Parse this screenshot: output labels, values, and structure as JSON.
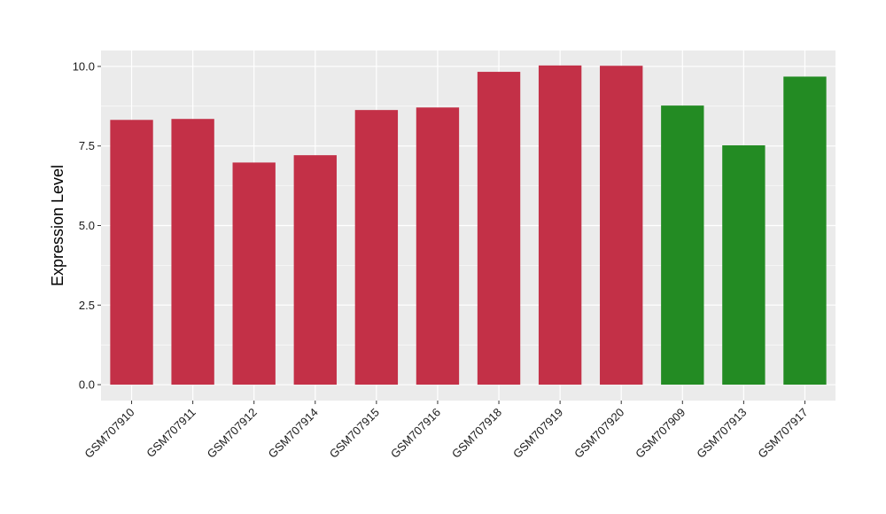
{
  "chart_data": {
    "type": "bar",
    "title": "",
    "xlabel": "",
    "ylabel": "Expression Level",
    "ylim": [
      -0.5,
      10.5
    ],
    "yticks": [
      0.0,
      2.5,
      5.0,
      7.5,
      10.0
    ],
    "ytick_labels": [
      "0.0",
      "2.5",
      "5.0",
      "7.5",
      "10.0"
    ],
    "grid": true,
    "legend": "none",
    "colors": {
      "group_a": "#c33047",
      "group_b": "#238b23",
      "panel": "#ebebeb",
      "grid": "#ffffff"
    },
    "categories": [
      "GSM707910",
      "GSM707911",
      "GSM707912",
      "GSM707914",
      "GSM707915",
      "GSM707916",
      "GSM707918",
      "GSM707919",
      "GSM707920",
      "GSM707909",
      "GSM707913",
      "GSM707917"
    ],
    "values": [
      8.32,
      8.35,
      6.98,
      7.21,
      8.63,
      8.71,
      9.83,
      10.03,
      10.02,
      8.77,
      7.52,
      9.68
    ],
    "bar_groups": [
      "group_a",
      "group_a",
      "group_a",
      "group_a",
      "group_a",
      "group_a",
      "group_a",
      "group_a",
      "group_a",
      "group_b",
      "group_b",
      "group_b"
    ]
  }
}
